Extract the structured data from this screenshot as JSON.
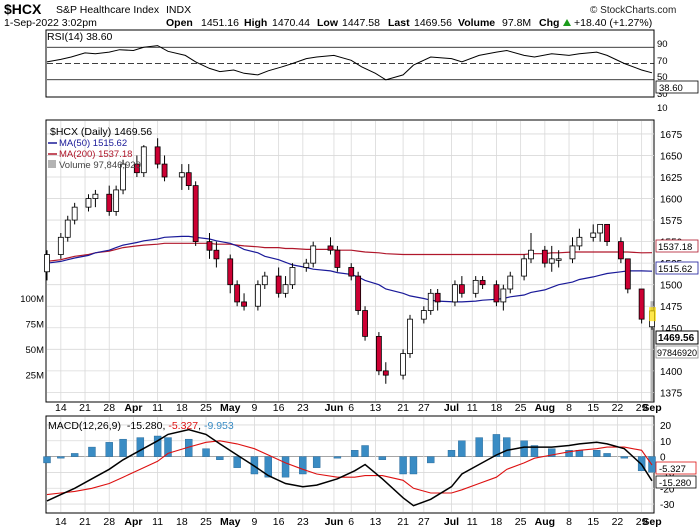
{
  "header": {
    "symbol": "$HCX",
    "name": "S&P Healthcare Index",
    "exchange": "INDX",
    "watermark": "© StockCharts.com",
    "date_time": "1-Sep-2022 3:02pm",
    "open_label": "Open",
    "open": "1451.16",
    "high_label": "High",
    "high": "1470.44",
    "low_label": "Low",
    "low": "1447.58",
    "last_label": "Last",
    "last": "1469.56",
    "volume_label": "Volume",
    "volume": "97.8M",
    "chg_label": "Chg",
    "chg": "+18.40 (+1.27%)",
    "chg_icon": "up-triangle-icon"
  },
  "rsi_panel": {
    "legend": "RSI(14) 38.60",
    "levels": [
      "90",
      "70",
      "50",
      "30",
      "10"
    ],
    "current_tag": "38.60"
  },
  "price_panel": {
    "legend_title": "$HCX (Daily) 1469.56",
    "ma50_label": "MA(50) 1515.62",
    "ma200_label": "MA(200) 1537.18",
    "volume_label": "Volume 97,846,920",
    "price_ticks": [
      "1675",
      "1650",
      "1625",
      "1600",
      "1575",
      "1550",
      "1525",
      "1500",
      "1475",
      "1450",
      "1425",
      "1400",
      "1375"
    ],
    "volume_ticks": [
      "100M",
      "75M",
      "50M",
      "25M"
    ],
    "tag_ma200": "1537.18",
    "tag_ma50": "1515.62",
    "tag_last": "1469.56",
    "tag_volume": "97846920"
  },
  "macd_panel": {
    "legend_prefix": "MACD(12,26,9)",
    "legend_macd": "-15.280",
    "legend_signal": "-5.327",
    "legend_hist": "-9.953",
    "levels": [
      "20",
      "10",
      "0",
      "-10",
      "-20",
      "-30"
    ],
    "tag_signal": "-5.327",
    "tag_macd": "-15.280"
  },
  "x_axis_labels": [
    "14",
    "21",
    "28",
    "Apr",
    "11",
    "18",
    "25",
    "May",
    "9",
    "16",
    "23",
    "Jun",
    "6",
    "13",
    "21",
    "27",
    "Jul",
    "11",
    "18",
    "25",
    "Aug",
    "8",
    "15",
    "22",
    "29",
    "Sep"
  ],
  "colors": {
    "up": "#ffffff",
    "down": "#cc0033",
    "ma50": "#1a1a99",
    "ma200": "#b0172b",
    "volume": "#b3b3b3",
    "hist": "#3a8cc4",
    "macd": "#000000",
    "signal": "#dd1111",
    "grid": "#d9d9d9"
  },
  "chart_data": [
    {
      "type": "line",
      "name": "RSI(14)",
      "x": [
        "Mar 10",
        "Mar 14",
        "Mar 17",
        "Mar 21",
        "Mar 24",
        "Mar 28",
        "Mar 31",
        "Apr 4",
        "Apr 7",
        "Apr 11",
        "Apr 14",
        "Apr 19",
        "Apr 22",
        "Apr 26",
        "Apr 29",
        "May 3",
        "May 6",
        "May 10",
        "May 13",
        "May 17",
        "May 20",
        "May 24",
        "May 27",
        "Jun 1",
        "Jun 6",
        "Jun 9",
        "Jun 13",
        "Jun 16",
        "Jun 21",
        "Jun 24",
        "Jun 29",
        "Jul 5",
        "Jul 8",
        "Jul 13",
        "Jul 18",
        "Jul 21",
        "Jul 26",
        "Jul 29",
        "Aug 3",
        "Aug 8",
        "Aug 11",
        "Aug 16",
        "Aug 19",
        "Aug 24",
        "Aug 29",
        "Sep 1"
      ],
      "values": [
        52,
        55,
        58,
        63,
        62,
        64,
        67,
        66,
        70,
        72,
        65,
        60,
        52,
        44,
        40,
        42,
        38,
        36,
        41,
        46,
        50,
        56,
        58,
        60,
        54,
        46,
        38,
        30,
        36,
        48,
        58,
        56,
        52,
        60,
        64,
        66,
        60,
        58,
        62,
        60,
        62,
        64,
        60,
        50,
        42,
        38.6
      ],
      "ylim": [
        10,
        90
      ],
      "levels": [
        30,
        50,
        70
      ]
    },
    {
      "type": "candlestick",
      "name": "$HCX (Daily)",
      "x": [
        "Mar 10",
        "Mar 14",
        "Mar 16",
        "Mar 18",
        "Mar 22",
        "Mar 24",
        "Mar 28",
        "Mar 30",
        "Apr 1",
        "Apr 5",
        "Apr 7",
        "Apr 11",
        "Apr 13",
        "Apr 18",
        "Apr 20",
        "Apr 22",
        "Apr 26",
        "Apr 28",
        "May 2",
        "May 4",
        "May 6",
        "May 10",
        "May 12",
        "May 16",
        "May 18",
        "May 20",
        "May 24",
        "May 26",
        "May 31",
        "Jun 2",
        "Jun 6",
        "Jun 8",
        "Jun 10",
        "Jun 14",
        "Jun 16",
        "Jun 21",
        "Jun 23",
        "Jun 27",
        "Jun 29",
        "Jul 1",
        "Jul 6",
        "Jul 8",
        "Jul 12",
        "Jul 14",
        "Jul 18",
        "Jul 20",
        "Jul 22",
        "Jul 26",
        "Jul 28",
        "Aug 1",
        "Aug 3",
        "Aug 5",
        "Aug 9",
        "Aug 11",
        "Aug 15",
        "Aug 17",
        "Aug 19",
        "Aug 23",
        "Aug 25",
        "Aug 29",
        "Sep 1"
      ],
      "open": [
        1515,
        1535,
        1555,
        1575,
        1590,
        1600,
        1605,
        1585,
        1610,
        1640,
        1630,
        1660,
        1640,
        1625,
        1630,
        1615,
        1550,
        1540,
        1530,
        1500,
        1480,
        1475,
        1500,
        1510,
        1490,
        1500,
        1520,
        1525,
        1545,
        1540,
        1520,
        1510,
        1470,
        1440,
        1400,
        1395,
        1420,
        1460,
        1470,
        1490,
        1480,
        1500,
        1490,
        1505,
        1500,
        1480,
        1495,
        1510,
        1530,
        1540,
        1525,
        1530,
        1530,
        1545,
        1555,
        1560,
        1570,
        1550,
        1530,
        1495,
        1451.16
      ],
      "high": [
        1540,
        1560,
        1580,
        1595,
        1605,
        1610,
        1615,
        1615,
        1645,
        1650,
        1662,
        1670,
        1650,
        1640,
        1640,
        1620,
        1560,
        1550,
        1535,
        1505,
        1490,
        1505,
        1515,
        1520,
        1510,
        1525,
        1530,
        1550,
        1555,
        1545,
        1525,
        1515,
        1475,
        1445,
        1410,
        1425,
        1465,
        1475,
        1495,
        1495,
        1505,
        1510,
        1510,
        1510,
        1505,
        1500,
        1515,
        1535,
        1560,
        1545,
        1545,
        1540,
        1555,
        1565,
        1570,
        1570,
        1570,
        1555,
        1530,
        1495,
        1470.44
      ],
      "low": [
        1505,
        1530,
        1550,
        1570,
        1585,
        1590,
        1580,
        1580,
        1605,
        1625,
        1625,
        1635,
        1620,
        1610,
        1610,
        1545,
        1530,
        1520,
        1490,
        1475,
        1470,
        1470,
        1495,
        1485,
        1485,
        1495,
        1515,
        1520,
        1535,
        1515,
        1505,
        1465,
        1435,
        1395,
        1385,
        1390,
        1415,
        1455,
        1465,
        1470,
        1475,
        1485,
        1485,
        1495,
        1475,
        1470,
        1490,
        1505,
        1525,
        1520,
        1515,
        1520,
        1525,
        1540,
        1550,
        1550,
        1545,
        1525,
        1490,
        1455,
        1447.58
      ],
      "close": [
        1535,
        1555,
        1575,
        1590,
        1600,
        1605,
        1585,
        1610,
        1640,
        1630,
        1660,
        1640,
        1625,
        1630,
        1615,
        1550,
        1540,
        1530,
        1500,
        1480,
        1475,
        1500,
        1510,
        1490,
        1500,
        1520,
        1525,
        1545,
        1540,
        1520,
        1510,
        1470,
        1440,
        1400,
        1395,
        1420,
        1460,
        1470,
        1490,
        1480,
        1500,
        1490,
        1505,
        1500,
        1480,
        1495,
        1510,
        1530,
        1540,
        1525,
        1530,
        1530,
        1545,
        1555,
        1560,
        1570,
        1550,
        1530,
        1495,
        1460,
        1469.56
      ],
      "ma50": [
        1525,
        1527,
        1529,
        1531,
        1534,
        1537,
        1540,
        1543,
        1546,
        1549,
        1551,
        1553,
        1555,
        1556,
        1556,
        1555,
        1553,
        1551,
        1548,
        1545,
        1541,
        1537,
        1533,
        1529,
        1526,
        1523,
        1520,
        1518,
        1516,
        1514,
        1512,
        1509,
        1505,
        1500,
        1495,
        1490,
        1487,
        1484,
        1482,
        1481,
        1480,
        1480,
        1481,
        1482,
        1483,
        1484,
        1486,
        1488,
        1491,
        1494,
        1497,
        1500,
        1503,
        1506,
        1509,
        1511,
        1513,
        1515,
        1516,
        1516,
        1515.62
      ],
      "ma200": [
        1527,
        1529,
        1531,
        1533,
        1535,
        1537,
        1539,
        1541,
        1543,
        1545,
        1546,
        1547,
        1548,
        1548,
        1548,
        1548,
        1548,
        1547,
        1547,
        1546,
        1545,
        1544,
        1543,
        1543,
        1542,
        1542,
        1541,
        1541,
        1541,
        1540,
        1540,
        1539,
        1538,
        1537,
        1536,
        1535,
        1535,
        1535,
        1535,
        1535,
        1535,
        1535,
        1535,
        1535,
        1535,
        1535,
        1535,
        1535,
        1536,
        1536,
        1537,
        1537,
        1538,
        1538,
        1538,
        1538,
        1538,
        1538,
        1538,
        1537,
        1537.18
      ],
      "volume_millions": [
        60,
        55,
        58,
        62,
        50,
        55,
        58,
        60,
        54,
        65,
        60,
        62,
        58,
        55,
        60,
        58,
        62,
        65,
        70,
        68,
        62,
        60,
        58,
        55,
        50,
        52,
        54,
        56,
        58,
        60,
        62,
        58,
        65,
        70,
        75,
        80,
        72,
        60,
        55,
        50,
        48,
        52,
        50,
        48,
        55,
        50,
        48,
        50,
        52,
        48,
        50,
        45,
        46,
        48,
        50,
        45,
        48,
        52,
        55,
        60,
        97.85
      ],
      "ylim": [
        1365,
        1690
      ]
    },
    {
      "type": "line",
      "name": "MACD(12,26,9)",
      "x": [
        "Mar 10",
        "Mar 14",
        "Mar 18",
        "Mar 23",
        "Mar 28",
        "Apr 1",
        "Apr 6",
        "Apr 11",
        "Apr 14",
        "Apr 20",
        "Apr 25",
        "Apr 29",
        "May 4",
        "May 9",
        "May 13",
        "May 18",
        "May 23",
        "May 27",
        "Jun 2",
        "Jun 7",
        "Jun 10",
        "Jun 15",
        "Jun 21",
        "Jun 24",
        "Jun 29",
        "Jul 5",
        "Jul 8",
        "Jul 13",
        "Jul 18",
        "Jul 21",
        "Jul 26",
        "Jul 29",
        "Aug 3",
        "Aug 8",
        "Aug 11",
        "Aug 16",
        "Aug 19",
        "Aug 24",
        "Aug 29",
        "Sep 1"
      ],
      "series": [
        {
          "name": "MACD",
          "values": [
            -28,
            -24,
            -20,
            -14,
            -8,
            -2,
            4,
            10,
            14,
            17,
            14,
            8,
            1,
            -6,
            -12,
            -17,
            -19,
            -18,
            -14,
            -9,
            -5,
            -14,
            -26,
            -31,
            -27,
            -19,
            -11,
            -5,
            1,
            4,
            6,
            6,
            6,
            7,
            8,
            9,
            8,
            5,
            -5,
            -15.28
          ]
        },
        {
          "name": "Signal",
          "values": [
            -24,
            -23,
            -22,
            -20,
            -17,
            -13,
            -8,
            -3,
            2,
            6,
            9,
            10,
            8,
            5,
            1,
            -4,
            -8,
            -11,
            -13,
            -13,
            -12,
            -12,
            -15,
            -20,
            -23,
            -23,
            -21,
            -17,
            -13,
            -8,
            -4,
            -1,
            1,
            3,
            4,
            5,
            6,
            6,
            4,
            -5.327
          ]
        },
        {
          "name": "Histogram",
          "values": [
            -4,
            -1,
            2,
            6,
            9,
            11,
            12,
            13,
            12,
            11,
            5,
            -2,
            -7,
            -11,
            -13,
            -13,
            -11,
            -7,
            -1,
            4,
            7,
            -2,
            -11,
            -11,
            -4,
            4,
            10,
            12,
            14,
            12,
            10,
            7,
            5,
            4,
            4,
            4,
            2,
            -1,
            -9,
            -9.953
          ]
        }
      ],
      "ylim": [
        -35,
        25
      ]
    }
  ]
}
